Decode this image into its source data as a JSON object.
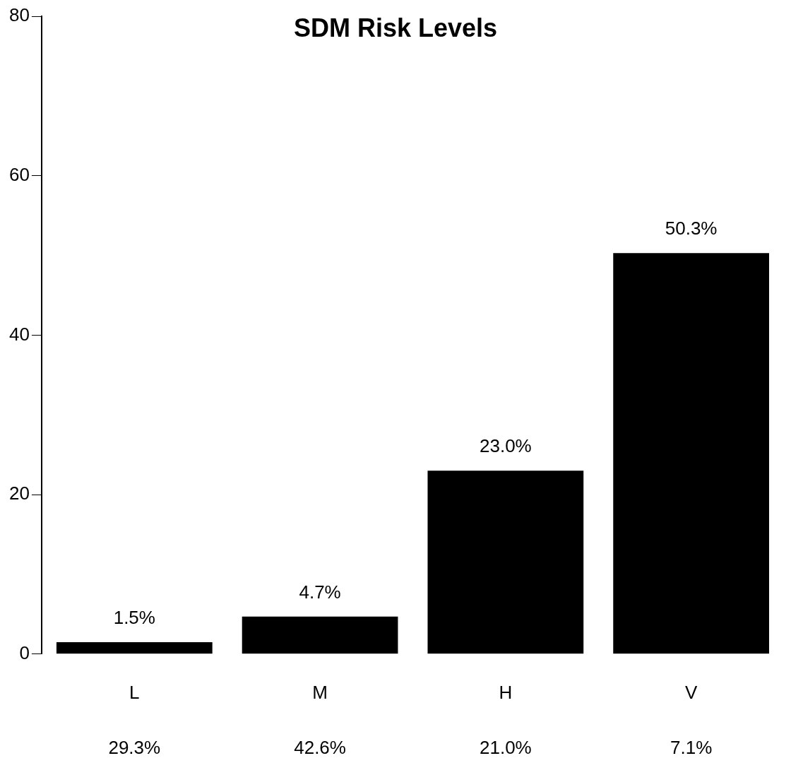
{
  "chart_data": {
    "type": "bar",
    "title": "SDM Risk Levels",
    "categories": [
      "L",
      "M",
      "H",
      "V"
    ],
    "values": [
      1.5,
      4.7,
      23.0,
      50.3
    ],
    "color": "#000000",
    "value_labels": [
      "1.5%",
      "4.7%",
      "23.0%",
      "50.3%"
    ],
    "ylim": [
      0,
      80
    ],
    "yticks": [
      0,
      20,
      40,
      60,
      80
    ],
    "grid": false,
    "legend": false,
    "annotations": [
      "29.3%",
      "42.6%",
      "21.0%",
      "7.1%"
    ]
  }
}
